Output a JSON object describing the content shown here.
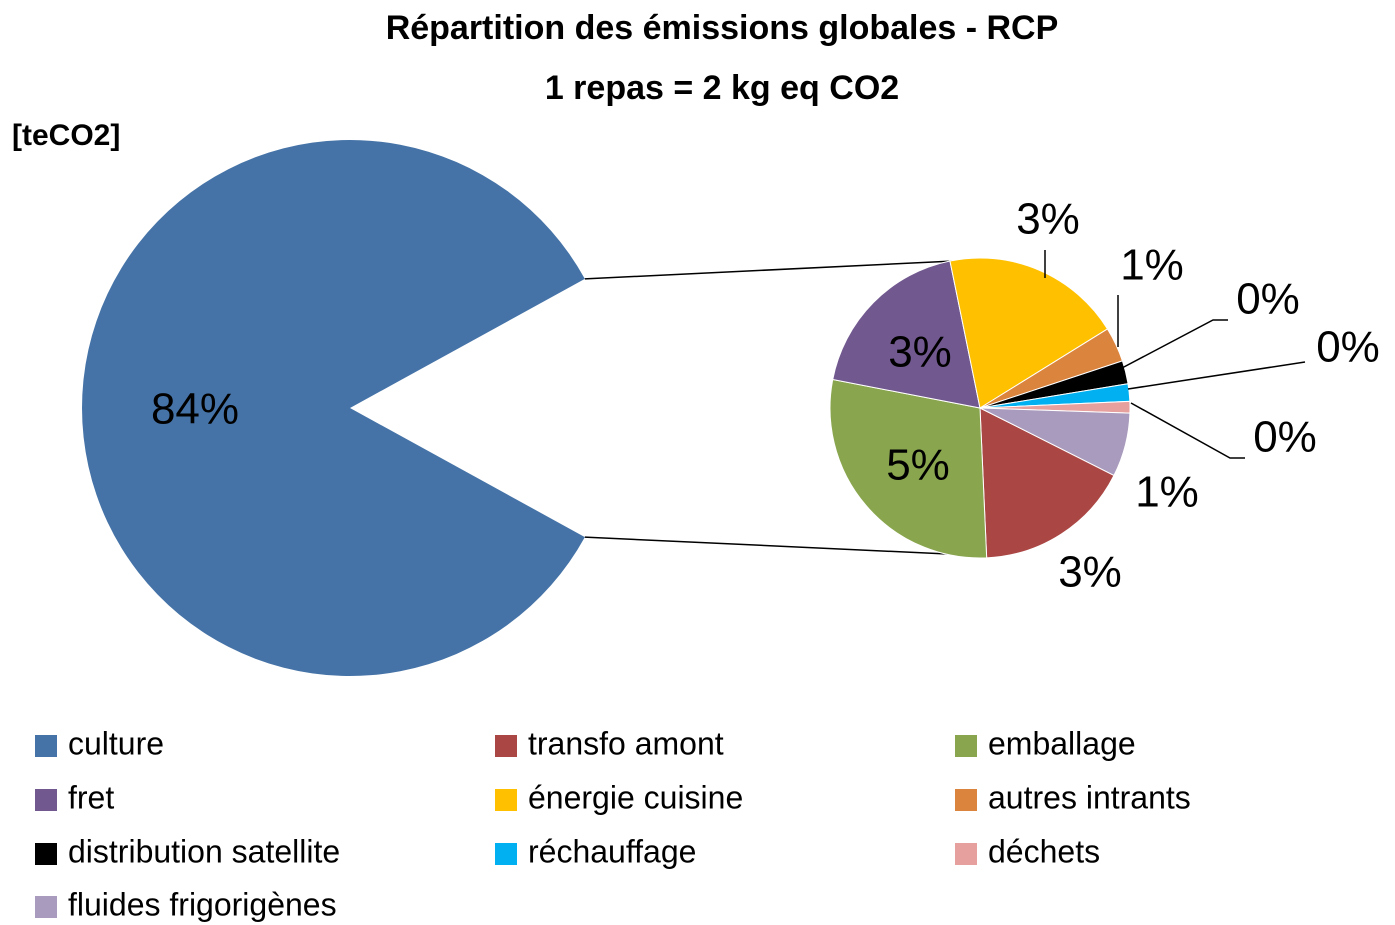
{
  "chart_data": {
    "type": "pie-of-pie",
    "title": "Répartition des émissions globales - RCP",
    "subtitle": "1 repas = 2 kg eq CO2",
    "unit_label": "[teCO2]",
    "categories": [
      "culture",
      "transfo amont",
      "emballage",
      "fret",
      "énergie cuisine",
      "autres intrants",
      "distribution satellite",
      "réchauffage",
      "déchets",
      "fluides frigorigènes"
    ],
    "values": [
      84.0,
      2.7,
      4.6,
      3.0,
      3.1,
      0.6,
      0.4,
      0.3,
      0.2,
      1.1
    ],
    "value_labels": [
      "84%",
      "3%",
      "5%",
      "3%",
      "3%",
      "1%",
      "0%",
      "0%",
      "0%",
      "1%"
    ],
    "colors": [
      "#4573a7",
      "#aa4643",
      "#89a54e",
      "#71588f",
      "#ffc000",
      "#db843d",
      "#000000",
      "#00b0f0",
      "#e6a09e",
      "#a99bbd"
    ],
    "legend": "bottom"
  }
}
